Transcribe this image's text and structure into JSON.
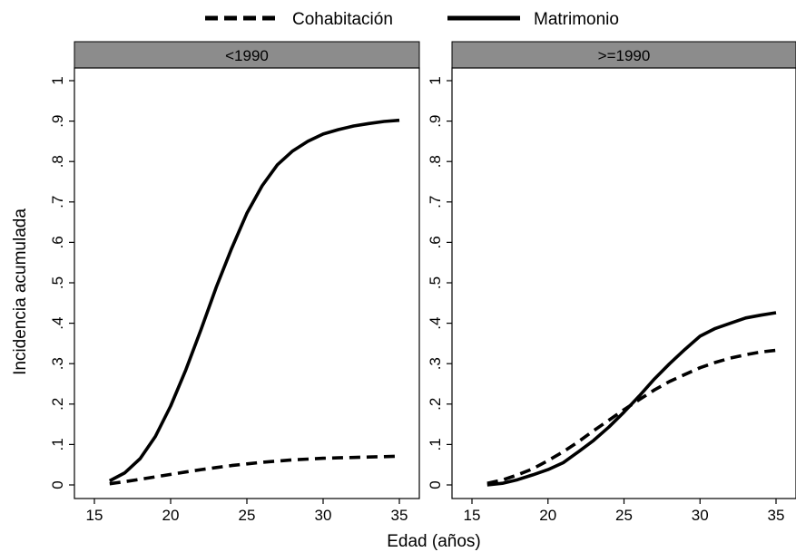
{
  "chart_data": {
    "type": "line",
    "ylabel": "Incidencia acumulada",
    "xlabel": "Edad (años)",
    "legend": {
      "position": "top",
      "entries": [
        {
          "name": "Cohabitación",
          "style": "dashed"
        },
        {
          "name": "Matrimonio",
          "style": "solid"
        }
      ]
    },
    "xlim": [
      15,
      35
    ],
    "ylim": [
      0,
      1
    ],
    "xticks": [
      15,
      20,
      25,
      30,
      35
    ],
    "xtick_labels": [
      "15",
      "20",
      "25",
      "30",
      "35"
    ],
    "yticks": [
      0,
      0.1,
      0.2,
      0.3,
      0.4,
      0.5,
      0.6,
      0.7,
      0.8,
      0.9,
      1
    ],
    "ytick_labels": [
      "0",
      ".1",
      ".2",
      ".3",
      ".4",
      ".5",
      ".6",
      ".7",
      ".8",
      ".9",
      "1"
    ],
    "grid": false,
    "colors": {
      "line": "#000000",
      "strip": "#8c8c8c"
    },
    "panels": [
      {
        "title": "<1990",
        "series": [
          {
            "name": "Cohabitación",
            "style": "dashed",
            "x": [
              16,
              17,
              18,
              19,
              20,
              21,
              22,
              23,
              24,
              25,
              26,
              27,
              28,
              29,
              30,
              31,
              32,
              33,
              34,
              35
            ],
            "y": [
              0.003,
              0.008,
              0.014,
              0.02,
              0.026,
              0.032,
              0.038,
              0.043,
              0.048,
              0.052,
              0.056,
              0.059,
              0.062,
              0.064,
              0.066,
              0.067,
              0.068,
              0.069,
              0.07,
              0.071
            ]
          },
          {
            "name": "Matrimonio",
            "style": "solid",
            "x": [
              16,
              17,
              18,
              19,
              20,
              21,
              22,
              23,
              24,
              25,
              26,
              27,
              28,
              29,
              30,
              31,
              32,
              33,
              34,
              35
            ],
            "y": [
              0.01,
              0.03,
              0.065,
              0.12,
              0.195,
              0.285,
              0.385,
              0.49,
              0.585,
              0.672,
              0.74,
              0.792,
              0.826,
              0.85,
              0.868,
              0.879,
              0.888,
              0.894,
              0.899,
              0.902
            ]
          }
        ]
      },
      {
        "title": ">=1990",
        "series": [
          {
            "name": "Cohabitación",
            "style": "dashed",
            "x": [
              16,
              17,
              18,
              19,
              20,
              21,
              22,
              23,
              24,
              25,
              26,
              27,
              28,
              29,
              30,
              31,
              32,
              33,
              34,
              35
            ],
            "y": [
              0.004,
              0.012,
              0.025,
              0.04,
              0.06,
              0.082,
              0.107,
              0.134,
              0.16,
              0.186,
              0.211,
              0.235,
              0.256,
              0.273,
              0.29,
              0.303,
              0.314,
              0.322,
              0.329,
              0.333
            ]
          },
          {
            "name": "Matrimonio",
            "style": "solid",
            "x": [
              16,
              17,
              18,
              19,
              20,
              21,
              22,
              23,
              24,
              25,
              26,
              27,
              28,
              29,
              30,
              31,
              32,
              33,
              34,
              35
            ],
            "y": [
              0.0,
              0.004,
              0.013,
              0.025,
              0.038,
              0.055,
              0.082,
              0.11,
              0.143,
              0.18,
              0.22,
              0.262,
              0.3,
              0.335,
              0.368,
              0.387,
              0.4,
              0.413,
              0.42,
              0.426
            ]
          }
        ]
      }
    ]
  }
}
